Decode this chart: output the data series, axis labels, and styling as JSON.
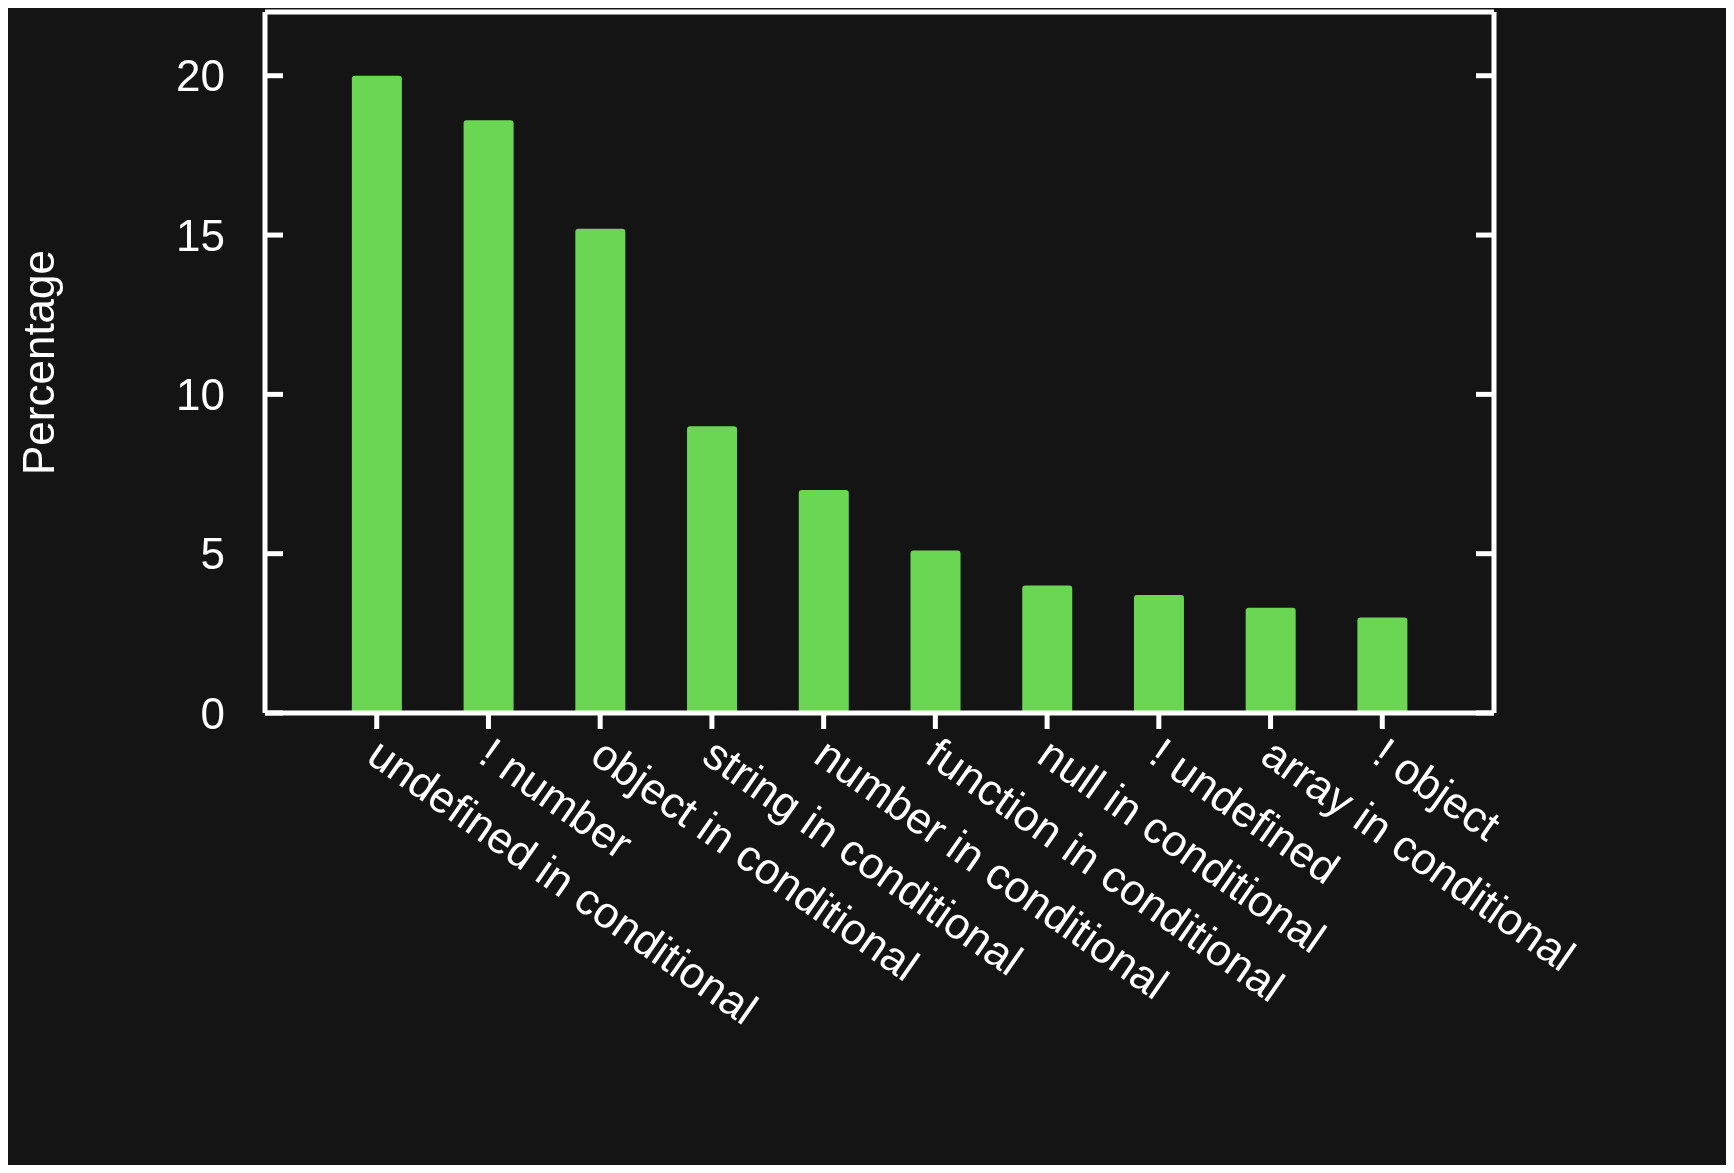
{
  "chart_data": {
    "type": "bar",
    "ylabel": "Percentage",
    "categories": [
      "undefined in conditional",
      "! number",
      "object in conditional",
      "string in conditional",
      "number in conditional",
      "function in conditional",
      "null in conditional",
      "! undefined",
      "array in conditional",
      "! object"
    ],
    "values": [
      20.0,
      18.6,
      15.2,
      9.0,
      7.0,
      5.1,
      4.0,
      3.7,
      3.3,
      3.0
    ],
    "color": "#6ad653",
    "ylim": [
      0,
      22
    ],
    "yticks": [
      0,
      5,
      10,
      15,
      20
    ],
    "grid": false,
    "legend": false
  }
}
